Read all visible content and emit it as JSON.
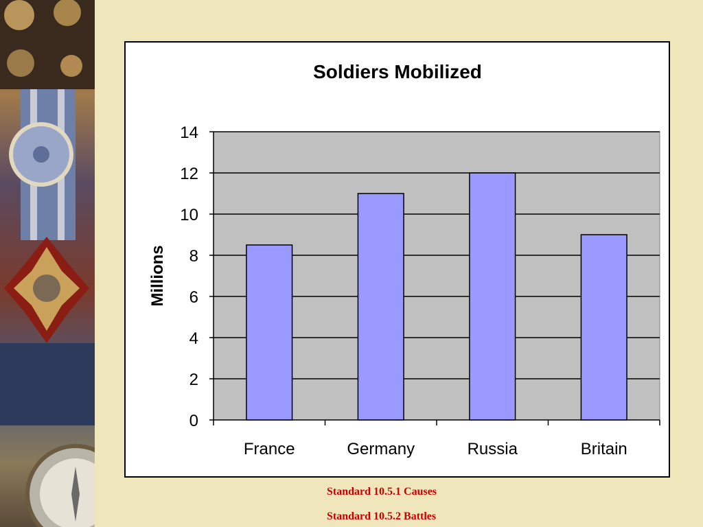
{
  "colors": {
    "page_background": "#efe6bc",
    "plot_background": "#c0c0c0",
    "bar_fill": "#9999ff",
    "footer_text": "#cc0000"
  },
  "side_art": {
    "icon": "medal-and-compass-decorative-image"
  },
  "chart_data": {
    "type": "bar",
    "title": "Soldiers Mobilized",
    "xlabel": "",
    "ylabel": "Millions",
    "categories": [
      "France",
      "Germany",
      "Russia",
      "Britain"
    ],
    "values": [
      8.5,
      11,
      12,
      9
    ],
    "ylim": [
      0,
      14
    ],
    "yticks": [
      "0",
      "2",
      "4",
      "6",
      "8",
      "10",
      "12",
      "14"
    ],
    "grid": true,
    "legend": "none"
  },
  "footer": {
    "standard_causes": "Standard 10.5.1 Causes",
    "standard_battles": "Standard 10.5.2 Battles"
  }
}
